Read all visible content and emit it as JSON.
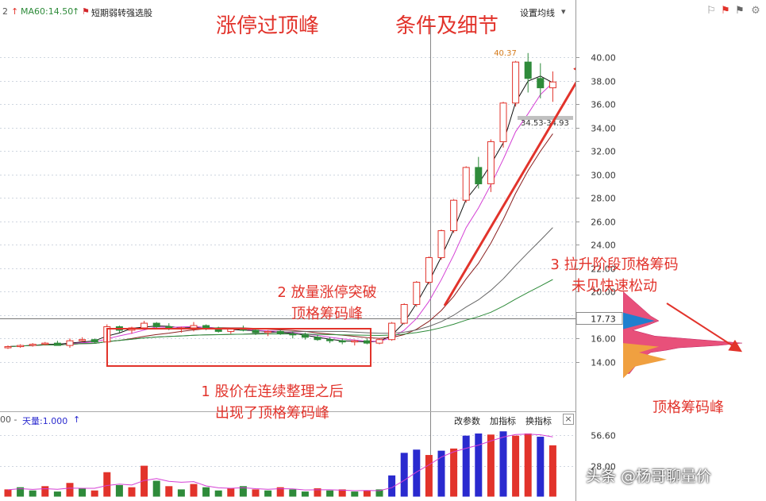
{
  "topbar": {
    "prefix": "2",
    "ma60_label": "MA60:14.50",
    "up_arrow": "↑",
    "flag_icon": "red-flag-icon",
    "strategy": "短期弱转强选股",
    "settings": "设置均线",
    "settings_arrow": "▾"
  },
  "titles": {
    "left": "涨停过顶峰",
    "right": "条件及细节"
  },
  "annotations": {
    "a1_line1": "1 股价在连续整理之后",
    "a1_line2": "出现了顶格筹码峰",
    "a2_line1": "2 放量涨停突破",
    "a2_line2": "顶格筹码峰",
    "a3_line1": "3 拉升阶段顶格筹码",
    "a3_line2": "未见快速松动",
    "a4": "顶格筹码峰"
  },
  "price_labels": {
    "high": "40.37",
    "range": "34.53-34.93",
    "current": "17.73"
  },
  "volume_header": {
    "prefix": "00 -",
    "tianliang": "天量:1.000",
    "arrow": "↑",
    "btn_params": "改参数",
    "btn_add": "加指标",
    "btn_switch": "换指标",
    "btn_close": "×"
  },
  "watermark": "头条 @杨哥聊量价",
  "colors": {
    "up": "#e2332b",
    "down": "#2e8b3a",
    "volume_up": "#e2332b",
    "volume_down": "#2a2acf",
    "grid": "#cfd6e0",
    "annotation": "#e2332b"
  },
  "icons": [
    "flag-icon",
    "red-flag-icon",
    "gray-flag-icon",
    "gear-icon"
  ],
  "chart_data": {
    "type": "candlestick",
    "y_axis": {
      "ticks": [
        14.0,
        16.0,
        18.0,
        20.0,
        22.0,
        24.0,
        26.0,
        28.0,
        30.0,
        32.0,
        34.0,
        36.0,
        38.0,
        40.0
      ],
      "tick_labels": [
        "14.00",
        "16.00",
        "",
        "20.00",
        "22.00",
        "24.00",
        "26.00",
        "28.00",
        "30.00",
        "32.00",
        "34.00",
        "36.00",
        "38.00",
        "40.00"
      ],
      "range": [
        11.0,
        43.0
      ]
    },
    "candles": [
      [
        15.2,
        15.4,
        15.1,
        15.3
      ],
      [
        15.3,
        15.5,
        15.2,
        15.4
      ],
      [
        15.4,
        15.6,
        15.3,
        15.5
      ],
      [
        15.5,
        15.7,
        15.4,
        15.6
      ],
      [
        15.6,
        15.8,
        15.5,
        15.4
      ],
      [
        15.4,
        16.0,
        15.2,
        15.8
      ],
      [
        15.8,
        16.1,
        15.7,
        15.9
      ],
      [
        15.9,
        16.0,
        15.6,
        15.7
      ],
      [
        15.7,
        17.2,
        15.6,
        17.0
      ],
      [
        17.0,
        17.1,
        16.5,
        16.7
      ],
      [
        16.7,
        17.0,
        16.4,
        16.9
      ],
      [
        16.9,
        17.5,
        16.8,
        17.3
      ],
      [
        17.3,
        17.4,
        16.9,
        17.0
      ],
      [
        17.0,
        17.3,
        16.7,
        16.8
      ],
      [
        16.8,
        17.0,
        16.5,
        16.9
      ],
      [
        16.9,
        17.4,
        16.6,
        17.1
      ],
      [
        17.1,
        17.2,
        16.7,
        16.9
      ],
      [
        16.9,
        17.0,
        16.5,
        16.6
      ],
      [
        16.6,
        16.9,
        16.4,
        16.8
      ],
      [
        16.8,
        17.1,
        16.6,
        16.7
      ],
      [
        16.7,
        16.9,
        16.3,
        16.5
      ],
      [
        16.5,
        16.7,
        16.2,
        16.6
      ],
      [
        16.6,
        16.8,
        16.3,
        16.4
      ],
      [
        16.4,
        16.6,
        16.0,
        16.3
      ],
      [
        16.3,
        16.5,
        15.9,
        16.1
      ],
      [
        16.1,
        16.3,
        15.8,
        15.9
      ],
      [
        15.9,
        16.1,
        15.6,
        15.8
      ],
      [
        15.8,
        16.0,
        15.5,
        15.7
      ],
      [
        15.7,
        15.9,
        15.4,
        15.8
      ],
      [
        15.8,
        16.0,
        15.5,
        15.6
      ],
      [
        15.6,
        16.0,
        15.5,
        15.9
      ],
      [
        15.9,
        17.4,
        15.8,
        17.3
      ],
      [
        17.3,
        19.0,
        17.2,
        18.9
      ],
      [
        18.9,
        20.9,
        18.7,
        20.8
      ],
      [
        20.8,
        23.0,
        20.6,
        22.9
      ],
      [
        22.9,
        25.3,
        22.7,
        25.2
      ],
      [
        25.2,
        27.9,
        25.0,
        27.8
      ],
      [
        27.8,
        30.7,
        27.6,
        30.6
      ],
      [
        30.6,
        31.5,
        28.8,
        29.2
      ],
      [
        29.2,
        33.0,
        28.5,
        32.8
      ],
      [
        32.8,
        36.2,
        32.3,
        36.1
      ],
      [
        36.1,
        39.7,
        35.8,
        39.6
      ],
      [
        39.6,
        40.37,
        37.0,
        38.2
      ],
      [
        38.2,
        39.5,
        36.5,
        37.4
      ],
      [
        37.4,
        38.8,
        36.2,
        37.9
      ]
    ],
    "volume": {
      "ticks": [
        28.0,
        56.6
      ],
      "tick_labels": [
        "28.00",
        "56.60"
      ],
      "range": [
        0,
        65
      ],
      "values": [
        [
          6,
          1
        ],
        [
          8,
          0
        ],
        [
          5,
          0
        ],
        [
          9,
          1
        ],
        [
          4,
          0
        ],
        [
          12,
          1
        ],
        [
          7,
          0
        ],
        [
          5,
          1
        ],
        [
          22,
          1
        ],
        [
          10,
          0
        ],
        [
          8,
          1
        ],
        [
          28,
          1
        ],
        [
          14,
          0
        ],
        [
          9,
          1
        ],
        [
          6,
          0
        ],
        [
          11,
          1
        ],
        [
          8,
          0
        ],
        [
          5,
          0
        ],
        [
          7,
          1
        ],
        [
          9,
          0
        ],
        [
          6,
          1
        ],
        [
          5,
          0
        ],
        [
          8,
          1
        ],
        [
          6,
          0
        ],
        [
          4,
          0
        ],
        [
          7,
          1
        ],
        [
          5,
          0
        ],
        [
          6,
          1
        ],
        [
          4,
          0
        ],
        [
          5,
          1
        ],
        [
          6,
          0
        ],
        [
          19,
          0
        ],
        [
          40,
          0
        ],
        [
          43,
          0
        ],
        [
          38,
          1
        ],
        [
          42,
          0
        ],
        [
          44,
          1
        ],
        [
          56,
          0
        ],
        [
          58,
          0
        ],
        [
          57,
          1
        ],
        [
          60,
          0
        ],
        [
          56,
          1
        ],
        [
          58,
          1
        ],
        [
          55,
          0
        ],
        [
          47,
          1
        ]
      ]
    }
  }
}
